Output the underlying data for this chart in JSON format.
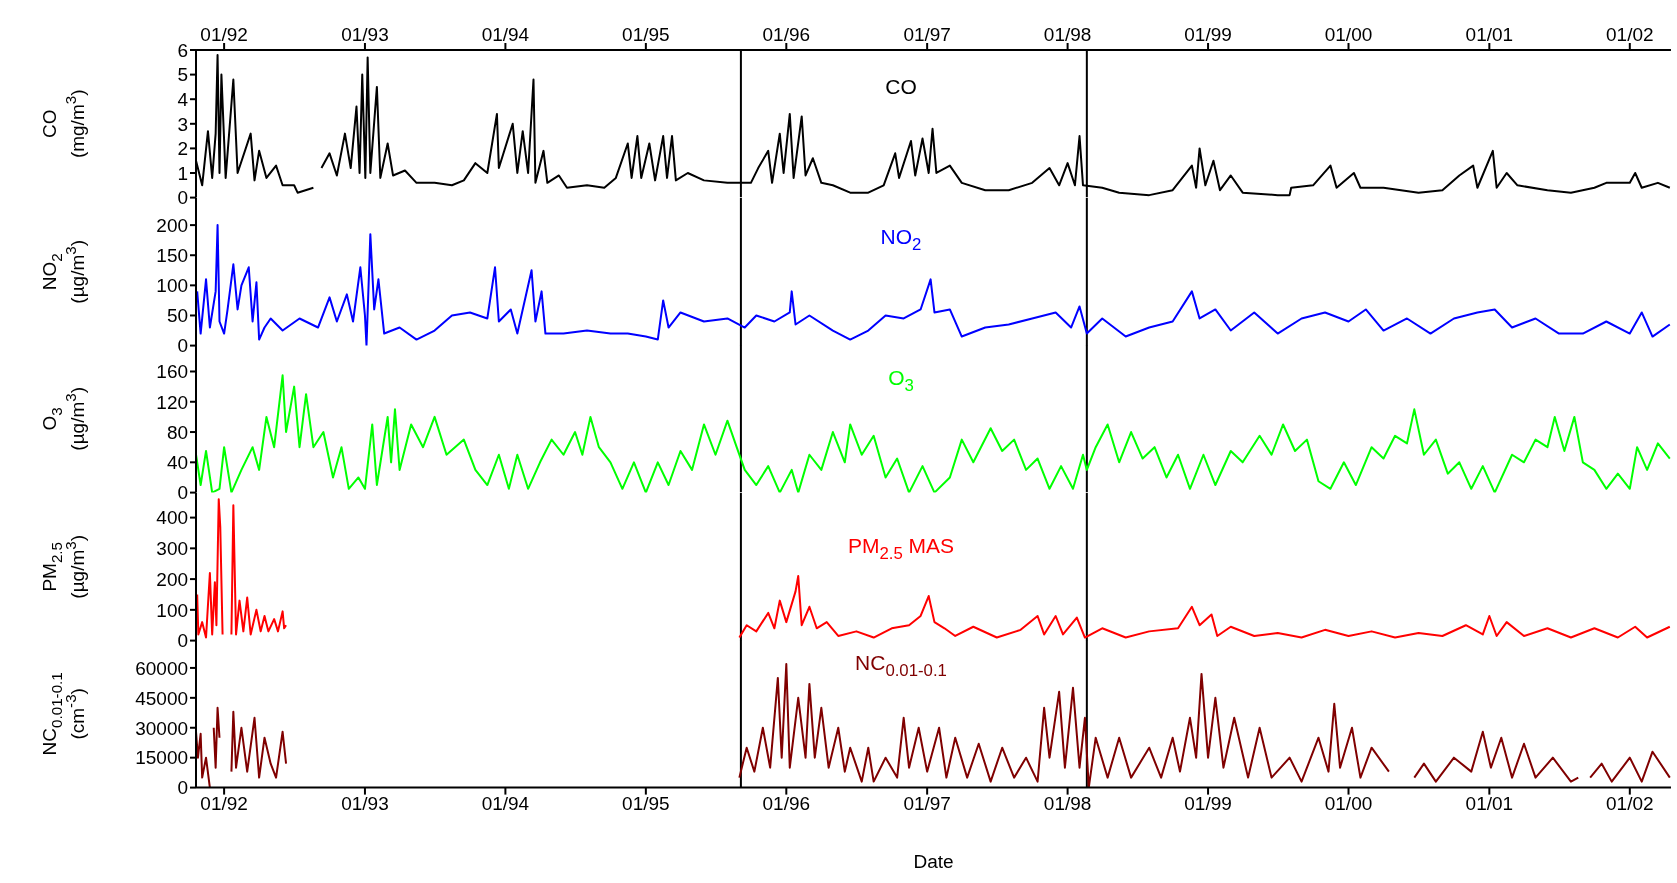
{
  "chart_data": [
    {
      "type": "line",
      "ylabel": "CO (mg/m$^{3}$)",
      "xlim": [
        "1991-10-20",
        "2002-04-18"
      ],
      "x2lim": [
        "1991-10-20",
        "2002-04-18"
      ],
      "x2ticks": [
        {
          "value": "1992-01",
          "label": "01/92"
        },
        {
          "value": "1993-01",
          "label": "01/93"
        },
        {
          "value": "1994-01",
          "label": "01/94"
        },
        {
          "value": "1995-01",
          "label": "01/95"
        },
        {
          "value": "1996-01",
          "label": "01/96"
        },
        {
          "value": "1997-01",
          "label": "01/97"
        },
        {
          "value": "1998-01",
          "label": "01/98"
        },
        {
          "value": "1999-01",
          "label": "01/99"
        },
        {
          "value": "2000-01",
          "label": "01/00"
        },
        {
          "value": "2001-01",
          "label": "01/01"
        },
        {
          "value": "2002-01",
          "label": "01/02"
        }
      ],
      "tick_labels": "y",
      "ylim": [
        0,
        6
      ],
      "yticks": [
        0,
        1,
        2,
        3,
        4,
        5,
        6
      ],
      "grid": false,
      "ref_lines": [
        {
          "axis": "x",
          "value": "1995-09-05",
          "color": "#000000"
        },
        {
          "axis": "x",
          "value": "1998-02-20",
          "color": "#000000"
        }
      ],
      "x": [
        "1991-10-20",
        "1991-11-05",
        "1991-11-20",
        "1991-12-01",
        "1991-12-10",
        "1991-12-15",
        "1991-12-20",
        "1991-12-25",
        "1992-01-05",
        "1992-01-25",
        "1992-02-05",
        "1992-03-10",
        "1992-03-20",
        "1992-04-01",
        "1992-04-20",
        "1992-05-15",
        "1992-06-01",
        "1992-07-01",
        "1992-07-10",
        "1992-08-20",
        "1992-09-01",
        "1992-09-10",
        "1992-10-01",
        "1992-10-20",
        "1992-11-10",
        "1992-11-25",
        "1992-12-10",
        "1992-12-18",
        "1992-12-25",
        "1993-01-02",
        "1993-01-08",
        "1993-01-15",
        "1993-02-01",
        "1993-02-10",
        "1993-03-01",
        "1993-03-15",
        "1993-04-15",
        "1993-05-15",
        "1993-07-01",
        "1993-08-15",
        "1993-09-15",
        "1993-10-15",
        "1993-11-15",
        "1993-12-10",
        "1993-12-15",
        "1994-01-20",
        "1994-02-01",
        "1994-02-15",
        "1994-03-01",
        "1994-03-15",
        "1994-03-20",
        "1994-04-10",
        "1994-04-20",
        "1994-05-20",
        "1994-06-10",
        "1994-08-01",
        "1994-09-15",
        "1994-10-15",
        "1994-11-15",
        "1994-11-25",
        "1994-12-10",
        "1994-12-20",
        "1995-01-10",
        "1995-01-25",
        "1995-02-15",
        "1995-02-25",
        "1995-03-10",
        "1995-03-20",
        "1995-04-20",
        "1995-06-01",
        "1995-08-01",
        "1995-10-01",
        "1995-10-20",
        "1995-11-15",
        "1995-11-25",
        "1995-12-15",
        "1995-12-25",
        "1996-01-10",
        "1996-01-20",
        "1996-02-10",
        "1996-02-20",
        "1996-03-10",
        "1996-04-01",
        "1996-05-01",
        "1996-06-15",
        "1996-08-01",
        "1996-09-10",
        "1996-10-10",
        "1996-10-20",
        "1996-11-20",
        "1996-12-01",
        "1996-12-20",
        "1997-01-05",
        "1997-01-15",
        "1997-01-25",
        "1997-03-01",
        "1997-04-01",
        "1997-06-01",
        "1997-08-01",
        "1997-10-01",
        "1997-11-15",
        "1997-12-10",
        "1998-01-01",
        "1998-01-20",
        "1998-02-01",
        "1998-02-10",
        "1998-04-01",
        "1998-05-15",
        "1998-08-01",
        "1998-10-01",
        "1998-11-20",
        "1998-12-01",
        "1998-12-10",
        "1998-12-25",
        "1999-01-15",
        "1999-02-01",
        "1999-03-01",
        "1999-04-01",
        "1999-07-01",
        "1999-08-01",
        "1999-08-05",
        "1999-10-01",
        "1999-11-15",
        "1999-12-01",
        "2000-01-15",
        "2000-02-01",
        "2000-04-01",
        "2000-07-01",
        "2000-09-01",
        "2000-10-15",
        "2000-11-20",
        "2000-12-01",
        "2001-01-10",
        "2001-01-20",
        "2001-02-15",
        "2001-03-15",
        "2001-06-01",
        "2001-08-01",
        "2001-10-01",
        "2001-11-01",
        "2002-01-01",
        "2002-01-15",
        "2002-02-01",
        "2002-03-15",
        "2002-04-15"
      ],
      "series": [
        {
          "name": "CO",
          "color": "#000000",
          "values": [
            1.5,
            0.5,
            2.7,
            0.8,
            2.6,
            5.8,
            1.0,
            5.0,
            0.8,
            4.8,
            1.0,
            2.6,
            0.7,
            1.9,
            0.8,
            1.3,
            0.5,
            0.5,
            0.2,
            0.4,
            null,
            1.2,
            1.8,
            0.9,
            2.6,
            1.2,
            3.7,
            1.0,
            5.0,
            0.8,
            5.7,
            1.0,
            4.5,
            0.8,
            2.2,
            0.9,
            1.1,
            0.6,
            0.6,
            0.5,
            0.7,
            1.4,
            1.0,
            3.4,
            1.2,
            3.0,
            1.0,
            2.7,
            1.0,
            4.8,
            0.6,
            1.9,
            0.6,
            0.9,
            0.4,
            0.5,
            0.4,
            0.8,
            2.2,
            0.8,
            2.5,
            0.8,
            2.2,
            0.7,
            2.5,
            0.8,
            2.5,
            0.7,
            1.0,
            0.7,
            0.6,
            0.6,
            1.2,
            1.9,
            0.6,
            2.6,
            1.0,
            3.4,
            0.8,
            3.3,
            0.9,
            1.6,
            0.6,
            0.5,
            0.2,
            0.2,
            0.5,
            1.8,
            0.8,
            2.3,
            0.9,
            2.4,
            1.0,
            2.8,
            1.0,
            1.3,
            0.6,
            0.3,
            0.3,
            0.6,
            1.2,
            0.5,
            1.4,
            0.5,
            2.5,
            0.5,
            0.4,
            0.2,
            0.1,
            0.3,
            1.3,
            0.4,
            2.0,
            0.5,
            1.5,
            0.3,
            0.9,
            0.2,
            0.1,
            0.1,
            0.4,
            0.5,
            1.3,
            0.4,
            1.0,
            0.4,
            0.4,
            0.2,
            0.3,
            0.9,
            1.3,
            0.4,
            1.9,
            0.4,
            1.0,
            0.5,
            0.3,
            0.2,
            0.4,
            0.6,
            0.6,
            1.0,
            0.4,
            0.6,
            0.4
          ]
        }
      ]
    },
    {
      "type": "line",
      "ylabel": "NO$_{2}$ (µg/m$^{3}$)",
      "xlim": [
        "1991-10-20",
        "2002-04-18"
      ],
      "tick_labels": "y",
      "ylim": [
        0,
        245
      ],
      "yticks": [
        0,
        50,
        100,
        150,
        200
      ],
      "grid": false,
      "ref_lines": [
        {
          "axis": "x",
          "value": "1995-09-05",
          "color": "#000000"
        },
        {
          "axis": "x",
          "value": "1998-02-20",
          "color": "#000000"
        }
      ],
      "x": [
        "1991-10-23",
        "1991-11-01",
        "1991-11-15",
        "1991-11-25",
        "1991-12-10",
        "1991-12-15",
        "1991-12-20",
        "1992-01-01",
        "1992-01-10",
        "1992-01-25",
        "1992-02-05",
        "1992-02-15",
        "1992-03-05",
        "1992-03-15",
        "1992-03-25",
        "1992-04-01",
        "1992-04-15",
        "1992-05-01",
        "1992-06-01",
        "1992-07-15",
        "1992-09-01",
        "1992-10-01",
        "1992-10-20",
        "1992-11-15",
        "1992-12-01",
        "1992-12-20",
        "1993-01-01",
        "1993-01-05",
        "1993-01-15",
        "1993-01-25",
        "1993-02-05",
        "1993-02-20",
        "1993-04-01",
        "1993-05-15",
        "1993-07-01",
        "1993-08-15",
        "1993-10-01",
        "1993-11-15",
        "1993-12-05",
        "1993-12-15",
        "1994-01-15",
        "1994-02-01",
        "1994-03-10",
        "1994-03-20",
        "1994-04-05",
        "1994-04-15",
        "1994-06-01",
        "1994-08-01",
        "1994-10-01",
        "1994-11-15",
        "1995-01-01",
        "1995-02-01",
        "1995-02-15",
        "1995-03-01",
        "1995-04-01",
        "1995-06-01",
        "1995-08-01",
        "1995-09-15",
        "1995-10-15",
        "1995-12-01",
        "1996-01-10",
        "1996-01-15",
        "1996-01-25",
        "1996-03-01",
        "1996-05-01",
        "1996-06-15",
        "1996-08-01",
        "1996-09-15",
        "1996-11-01",
        "1996-12-15",
        "1997-01-10",
        "1997-01-20",
        "1997-03-01",
        "1997-04-01",
        "1997-06-01",
        "1997-08-01",
        "1997-10-01",
        "1997-12-01",
        "1998-01-10",
        "1998-02-01",
        "1998-02-20",
        "1998-04-01",
        "1998-06-01",
        "1998-08-01",
        "1998-10-01",
        "1998-11-20",
        "1998-12-10",
        "1999-01-20",
        "1999-03-01",
        "1999-05-01",
        "1999-07-01",
        "1999-09-01",
        "1999-11-01",
        "2000-01-01",
        "2000-02-15",
        "2000-04-01",
        "2000-06-01",
        "2000-08-01",
        "2000-10-01",
        "2000-12-01",
        "2001-01-15",
        "2001-03-01",
        "2001-05-01",
        "2001-07-01",
        "2001-09-01",
        "2001-11-01",
        "2002-01-01",
        "2002-02-01",
        "2002-03-01",
        "2002-04-15"
      ],
      "series": [
        {
          "name": "NO$_{2}$",
          "color": "#0000ff",
          "values": [
            90,
            20,
            110,
            30,
            90,
            200,
            40,
            20,
            60,
            135,
            60,
            100,
            130,
            40,
            105,
            10,
            30,
            45,
            25,
            45,
            30,
            80,
            40,
            85,
            40,
            130,
            50,
            0,
            185,
            60,
            110,
            20,
            30,
            10,
            25,
            50,
            55,
            45,
            130,
            40,
            60,
            20,
            125,
            40,
            90,
            20,
            20,
            25,
            20,
            20,
            15,
            10,
            75,
            30,
            55,
            40,
            45,
            30,
            50,
            40,
            55,
            90,
            35,
            50,
            25,
            10,
            25,
            50,
            45,
            60,
            110,
            55,
            60,
            15,
            30,
            35,
            45,
            55,
            30,
            65,
            20,
            45,
            15,
            30,
            40,
            90,
            45,
            60,
            25,
            55,
            20,
            45,
            55,
            40,
            60,
            25,
            45,
            20,
            45,
            55,
            60,
            30,
            45,
            20,
            20,
            40,
            20,
            55,
            15,
            35
          ]
        }
      ]
    },
    {
      "type": "line",
      "ylabel": "O$_{3}$ (µg/m$^{3}$)",
      "xlim": [
        "1991-10-20",
        "2002-04-18"
      ],
      "tick_labels": "y",
      "ylim": [
        0,
        195
      ],
      "yticks": [
        0,
        40,
        80,
        120,
        160
      ],
      "grid": false,
      "ref_lines": [
        {
          "axis": "x",
          "value": "1995-09-05",
          "color": "#000000"
        },
        {
          "axis": "x",
          "value": "1998-02-20",
          "color": "#000000"
        }
      ],
      "x": [
        "1991-10-20",
        "1991-11-01",
        "1991-11-15",
        "1991-12-01",
        "1991-12-20",
        "1992-01-01",
        "1992-01-20",
        "1992-02-15",
        "1992-03-15",
        "1992-04-01",
        "1992-04-20",
        "1992-05-10",
        "1992-06-01",
        "1992-06-10",
        "1992-07-01",
        "1992-07-15",
        "1992-08-01",
        "1992-08-20",
        "1992-09-15",
        "1992-10-10",
        "1992-11-01",
        "1992-11-20",
        "1992-12-15",
        "1993-01-01",
        "1993-01-20",
        "1993-02-01",
        "1993-03-01",
        "1993-03-10",
        "1993-03-20",
        "1993-04-01",
        "1993-05-01",
        "1993-06-01",
        "1993-07-01",
        "1993-08-01",
        "1993-09-15",
        "1993-10-15",
        "1993-11-15",
        "1993-12-15",
        "1994-01-10",
        "1994-02-01",
        "1994-03-01",
        "1994-04-01",
        "1994-05-01",
        "1994-06-01",
        "1994-07-01",
        "1994-07-20",
        "1994-08-10",
        "1994-09-01",
        "1994-10-01",
        "1994-11-01",
        "1994-12-01",
        "1995-01-01",
        "1995-02-01",
        "1995-03-01",
        "1995-04-01",
        "1995-05-01",
        "1995-06-01",
        "1995-07-01",
        "1995-08-01",
        "1995-08-25",
        "1995-09-15",
        "1995-10-15",
        "1995-11-15",
        "1995-12-15",
        "1996-01-15",
        "1996-02-01",
        "1996-03-01",
        "1996-04-01",
        "1996-05-01",
        "1996-06-01",
        "1996-06-15",
        "1996-07-15",
        "1996-08-15",
        "1996-09-15",
        "1996-10-15",
        "1996-11-15",
        "1996-12-20",
        "1997-01-20",
        "1997-03-01",
        "1997-04-01",
        "1997-05-01",
        "1997-06-15",
        "1997-07-15",
        "1997-08-15",
        "1997-09-15",
        "1997-10-15",
        "1997-11-15",
        "1997-12-15",
        "1998-01-15",
        "1998-02-10",
        "1998-02-20",
        "1998-03-15",
        "1998-04-15",
        "1998-05-15",
        "1998-06-15",
        "1998-07-15",
        "1998-08-15",
        "1998-09-15",
        "1998-10-15",
        "1998-11-15",
        "1998-12-20",
        "1999-01-20",
        "1999-03-01",
        "1999-04-01",
        "1999-05-15",
        "1999-06-15",
        "1999-07-15",
        "1999-08-15",
        "1999-09-15",
        "1999-10-15",
        "1999-11-15",
        "1999-12-20",
        "2000-01-20",
        "2000-03-01",
        "2000-04-01",
        "2000-05-01",
        "2000-06-01",
        "2000-06-20",
        "2000-07-15",
        "2000-08-15",
        "2000-09-15",
        "2000-10-15",
        "2000-11-15",
        "2000-12-15",
        "2001-01-15",
        "2001-03-01",
        "2001-04-01",
        "2001-05-01",
        "2001-06-01",
        "2001-06-20",
        "2001-07-15",
        "2001-08-10",
        "2001-09-01",
        "2001-10-01",
        "2001-11-01",
        "2001-12-01",
        "2002-01-01",
        "2002-01-20",
        "2002-02-15",
        "2002-03-15",
        "2002-04-15"
      ],
      "series": [
        {
          "name": "O$_{3}$",
          "color": "#00ff00",
          "values": [
            50,
            10,
            55,
            0,
            5,
            60,
            0,
            30,
            60,
            30,
            100,
            60,
            155,
            80,
            140,
            60,
            130,
            60,
            80,
            20,
            60,
            5,
            20,
            5,
            90,
            10,
            100,
            40,
            110,
            30,
            90,
            60,
            100,
            50,
            70,
            30,
            10,
            50,
            5,
            50,
            5,
            40,
            70,
            50,
            80,
            50,
            100,
            60,
            40,
            5,
            40,
            0,
            40,
            10,
            55,
            30,
            90,
            50,
            95,
            60,
            30,
            10,
            35,
            0,
            30,
            0,
            50,
            30,
            80,
            40,
            90,
            50,
            75,
            20,
            45,
            0,
            35,
            0,
            20,
            70,
            40,
            85,
            55,
            70,
            30,
            45,
            5,
            35,
            5,
            50,
            30,
            60,
            90,
            40,
            80,
            45,
            60,
            20,
            50,
            5,
            50,
            10,
            55,
            40,
            75,
            50,
            90,
            55,
            70,
            15,
            5,
            40,
            10,
            60,
            45,
            75,
            65,
            110,
            50,
            70,
            25,
            40,
            5,
            35,
            0,
            50,
            40,
            70,
            60,
            100,
            55,
            100,
            40,
            30,
            5,
            25,
            5,
            60,
            30,
            65,
            45
          ]
        }
      ]
    },
    {
      "type": "line",
      "ylabel": "PM$_{2.5}$ (µg/m$^{3}$)",
      "xlim": [
        "1991-10-20",
        "2002-04-18"
      ],
      "tick_labels": "y",
      "ylim": [
        0,
        480
      ],
      "yticks": [
        0,
        100,
        200,
        300,
        400
      ],
      "grid": false,
      "ref_lines": [
        {
          "axis": "x",
          "value": "1995-09-05",
          "color": "#000000"
        },
        {
          "axis": "x",
          "value": "1998-02-20",
          "color": "#000000"
        }
      ],
      "x": [
        "1991-10-23",
        "1991-10-26",
        "1991-11-05",
        "1991-11-15",
        "1991-11-25",
        "1991-12-01",
        "1991-12-08",
        "1991-12-12",
        "1991-12-18",
        "1991-12-22",
        "1991-12-28",
        "1992-01-10",
        "1992-01-20",
        "1992-01-25",
        "1992-02-01",
        "1992-02-10",
        "1992-02-20",
        "1992-03-01",
        "1992-03-10",
        "1992-03-25",
        "1992-04-05",
        "1992-04-15",
        "1992-04-25",
        "1992-05-10",
        "1992-05-20",
        "1992-06-01",
        "1992-06-05",
        "1992-06-10",
        "1992-06-15",
        "1995-09-01",
        "1995-09-20",
        "1995-10-15",
        "1995-11-15",
        "1995-12-01",
        "1995-12-15",
        "1996-01-01",
        "1996-01-25",
        "1996-02-01",
        "1996-02-10",
        "1996-03-01",
        "1996-03-20",
        "1996-04-15",
        "1996-05-15",
        "1996-07-01",
        "1996-08-15",
        "1996-10-01",
        "1996-11-15",
        "1996-12-15",
        "1997-01-05",
        "1997-01-20",
        "1997-02-15",
        "1997-03-15",
        "1997-05-01",
        "1997-07-01",
        "1997-09-01",
        "1997-10-15",
        "1997-11-01",
        "1997-12-01",
        "1997-12-20",
        "1998-01-25",
        "1998-02-15",
        "1998-04-01",
        "1998-06-01",
        "1998-08-01",
        "1998-10-15",
        "1998-11-20",
        "1998-12-10",
        "1999-01-10",
        "1999-01-25",
        "1999-03-01",
        "1999-05-01",
        "1999-07-01",
        "1999-09-01",
        "1999-11-01",
        "2000-01-01",
        "2000-03-01",
        "2000-05-01",
        "2000-07-01",
        "2000-09-01",
        "2000-11-01",
        "2000-12-15",
        "2001-01-01",
        "2001-01-20",
        "2001-02-15",
        "2001-04-01",
        "2001-06-01",
        "2001-08-01",
        "2001-10-01",
        "2001-12-01",
        "2002-01-15",
        "2002-02-15",
        "2002-04-15"
      ],
      "series": [
        {
          "name": "PM$_{2.5}$ MAS",
          "color": "#ff0000",
          "values": [
            150,
            20,
            60,
            10,
            220,
            20,
            190,
            50,
            460,
            370,
            20,
            null,
            20,
            440,
            20,
            130,
            30,
            140,
            20,
            100,
            30,
            80,
            30,
            70,
            30,
            95,
            40,
            50,
            null,
            10,
            50,
            30,
            90,
            40,
            130,
            60,
            160,
            210,
            50,
            110,
            40,
            60,
            15,
            30,
            10,
            40,
            50,
            80,
            145,
            60,
            40,
            15,
            45,
            10,
            35,
            80,
            20,
            80,
            20,
            75,
            10,
            40,
            10,
            30,
            40,
            110,
            50,
            85,
            15,
            45,
            15,
            25,
            10,
            35,
            15,
            30,
            10,
            25,
            15,
            50,
            20,
            80,
            15,
            60,
            15,
            40,
            10,
            40,
            10,
            45,
            10,
            45
          ]
        }
      ]
    },
    {
      "type": "line",
      "ylabel": "NC$_{0.01-0.1}$ (cm$^{-3}$)",
      "xlabel": "Date",
      "xlim": [
        "1991-10-20",
        "2002-04-18"
      ],
      "xticks": [
        {
          "value": "1992-01",
          "label": "01/92"
        },
        {
          "value": "1993-01",
          "label": "01/93"
        },
        {
          "value": "1994-01",
          "label": "01/94"
        },
        {
          "value": "1995-01",
          "label": "01/95"
        },
        {
          "value": "1996-01",
          "label": "01/96"
        },
        {
          "value": "1997-01",
          "label": "01/97"
        },
        {
          "value": "1998-01",
          "label": "01/98"
        },
        {
          "value": "1999-01",
          "label": "01/99"
        },
        {
          "value": "2000-01",
          "label": "01/00"
        },
        {
          "value": "2001-01",
          "label": "01/01"
        },
        {
          "value": "2002-01",
          "label": "01/02"
        }
      ],
      "ylim": [
        0,
        74000
      ],
      "yticks": [
        0,
        15000,
        30000,
        45000,
        60000
      ],
      "grid": false,
      "ref_lines": [
        {
          "axis": "x",
          "value": "1995-09-05",
          "color": "#000000"
        },
        {
          "axis": "x",
          "value": "1998-02-20",
          "color": "#000000"
        }
      ],
      "x": [
        "1991-10-20",
        "1991-10-25",
        "1991-11-01",
        "1991-11-05",
        "1991-11-15",
        "1991-11-25",
        "1991-12-01",
        "1991-12-05",
        "1991-12-10",
        "1991-12-15",
        "1991-12-20",
        "1991-12-28",
        "1992-01-20",
        "1992-01-25",
        "1992-02-01",
        "1992-02-15",
        "1992-03-01",
        "1992-03-20",
        "1992-04-01",
        "1992-04-15",
        "1992-05-01",
        "1992-05-15",
        "1992-06-01",
        "1992-06-10",
        "1992-06-15",
        "1995-09-01",
        "1995-09-20",
        "1995-10-10",
        "1995-11-01",
        "1995-11-20",
        "1995-12-10",
        "1995-12-20",
        "1996-01-01",
        "1996-01-10",
        "1996-02-01",
        "1996-02-20",
        "1996-03-01",
        "1996-03-15",
        "1996-04-01",
        "1996-04-20",
        "1996-05-15",
        "1996-06-01",
        "1996-06-15",
        "1996-07-15",
        "1996-08-01",
        "1996-08-15",
        "1996-09-15",
        "1996-10-15",
        "1996-11-01",
        "1996-11-15",
        "1996-12-10",
        "1997-01-01",
        "1997-02-01",
        "1997-02-20",
        "1997-03-15",
        "1997-04-15",
        "1997-05-15",
        "1997-06-15",
        "1997-07-15",
        "1997-08-15",
        "1997-09-15",
        "1997-10-15",
        "1997-11-01",
        "1997-11-15",
        "1997-12-10",
        "1997-12-25",
        "1998-01-15",
        "1998-02-01",
        "1998-02-15",
        "1998-02-25",
        "1998-03-15",
        "1998-04-15",
        "1998-05-15",
        "1998-06-15",
        "1998-08-01",
        "1998-09-01",
        "1998-10-01",
        "1998-10-20",
        "1998-11-15",
        "1998-12-01",
        "1998-12-15",
        "1999-01-01",
        "1999-01-20",
        "1999-02-10",
        "1999-03-10",
        "1999-04-15",
        "1999-05-15",
        "1999-06-15",
        "1999-08-01",
        "1999-09-01",
        "1999-10-15",
        "1999-11-10",
        "1999-11-25",
        "1999-12-10",
        "2000-01-10",
        "2000-02-01",
        "2000-03-01",
        "2000-04-15",
        "2000-05-01",
        "2000-06-20",
        "2000-07-15",
        "2000-08-15",
        "2000-10-01",
        "2000-11-15",
        "2000-12-15",
        "2001-01-05",
        "2001-02-01",
        "2001-03-01",
        "2001-04-01",
        "2001-05-01",
        "2001-06-15",
        "2001-08-01",
        "2001-08-20",
        "2001-09-01",
        "2001-09-20",
        "2001-10-20",
        "2001-11-15",
        "2002-01-01",
        "2002-02-01",
        "2002-03-01",
        "2002-04-15"
      ],
      "series": [
        {
          "name": "NC$_{0.01-0.1}$",
          "color": "#800000",
          "values": [
            28000,
            15000,
            27000,
            5000,
            15000,
            0,
            null,
            30000,
            10000,
            40000,
            25000,
            null,
            8000,
            38000,
            10000,
            30000,
            8000,
            35000,
            5000,
            25000,
            12000,
            5000,
            28000,
            12000,
            null,
            5000,
            20000,
            8000,
            30000,
            10000,
            55000,
            15000,
            62000,
            10000,
            45000,
            15000,
            52000,
            15000,
            40000,
            10000,
            30000,
            8000,
            20000,
            3000,
            20000,
            3000,
            15000,
            5000,
            35000,
            10000,
            30000,
            8000,
            30000,
            5000,
            25000,
            5000,
            22000,
            3000,
            20000,
            5000,
            15000,
            3000,
            40000,
            15000,
            48000,
            10000,
            50000,
            10000,
            35000,
            0,
            25000,
            5000,
            25000,
            5000,
            20000,
            5000,
            25000,
            8000,
            35000,
            15000,
            57000,
            15000,
            45000,
            10000,
            35000,
            5000,
            30000,
            5000,
            15000,
            3000,
            25000,
            8000,
            42000,
            10000,
            30000,
            5000,
            20000,
            8000,
            null,
            5000,
            12000,
            3000,
            15000,
            8000,
            28000,
            10000,
            25000,
            5000,
            22000,
            5000,
            15000,
            3000,
            5000,
            null,
            5000,
            12000,
            3000,
            15000,
            3000,
            18000,
            5000
          ]
        }
      ]
    }
  ]
}
